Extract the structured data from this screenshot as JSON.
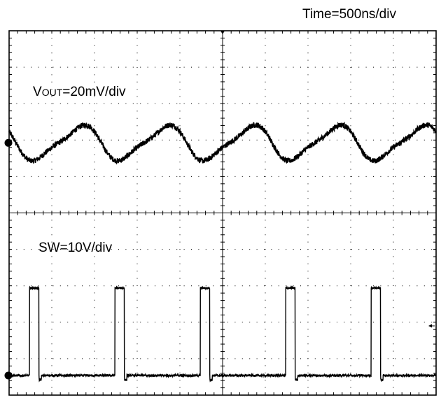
{
  "chart_data": {
    "type": "line",
    "title": "",
    "timebase": "Time=500ns/div",
    "grid": true,
    "divisions": {
      "x": 10,
      "y": 10
    },
    "panels": [
      {
        "name": "VOUT",
        "label": {
          "main": "V",
          "sub": "OUT",
          "rest": "=20mV/div"
        },
        "scale": "20mV/div",
        "waveform": "ripple",
        "ripple_period_ns": 1000,
        "first_trough_ns": 330,
        "peak_to_peak_mV": 18,
        "noise_mV": 1.5
      },
      {
        "name": "SW",
        "label": "SW=10V/div",
        "scale": "10V/div",
        "waveform": "pulse",
        "pulse_period_ns": 1000,
        "first_rise_ns": 240,
        "pulse_width_ns": 110,
        "high_V": 24,
        "low_V": 0,
        "noise_V": 0.3
      }
    ],
    "x_range_ns": [
      0,
      5000
    ],
    "colors": {
      "trace": "#000000",
      "grid": "#000000",
      "background": "#ffffff"
    }
  }
}
